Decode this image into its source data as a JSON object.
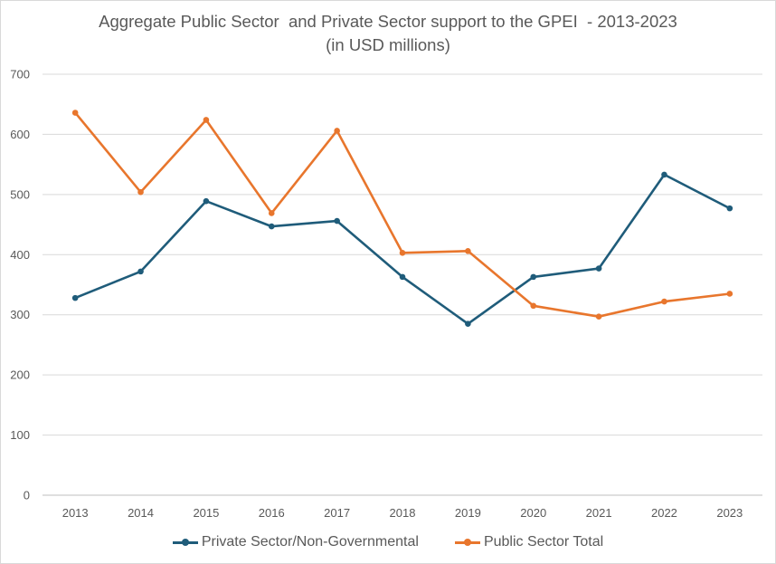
{
  "chart_data": {
    "type": "line",
    "title_line1": "Aggregate Public Sector  and Private Sector support to the GPEI  - 2013-2023",
    "title_line2": "(in USD millions)",
    "xlabel": "",
    "ylabel": "",
    "x": [
      "2013",
      "2014",
      "2015",
      "2016",
      "2017",
      "2018",
      "2019",
      "2020",
      "2021",
      "2022",
      "2023"
    ],
    "ylim": [
      0,
      700
    ],
    "yticks": [
      0,
      100,
      200,
      300,
      400,
      500,
      600,
      700
    ],
    "grid": true,
    "legend_position": "bottom",
    "series": [
      {
        "name": "Private Sector/Non-Governmental",
        "color": "#1f5c7a",
        "values": [
          328,
          372,
          489,
          447,
          456,
          363,
          285,
          363,
          377,
          533,
          477
        ]
      },
      {
        "name": "Public Sector Total",
        "color": "#e8762d",
        "values": [
          636,
          504,
          624,
          469,
          606,
          403,
          406,
          315,
          297,
          322,
          335
        ]
      }
    ]
  }
}
